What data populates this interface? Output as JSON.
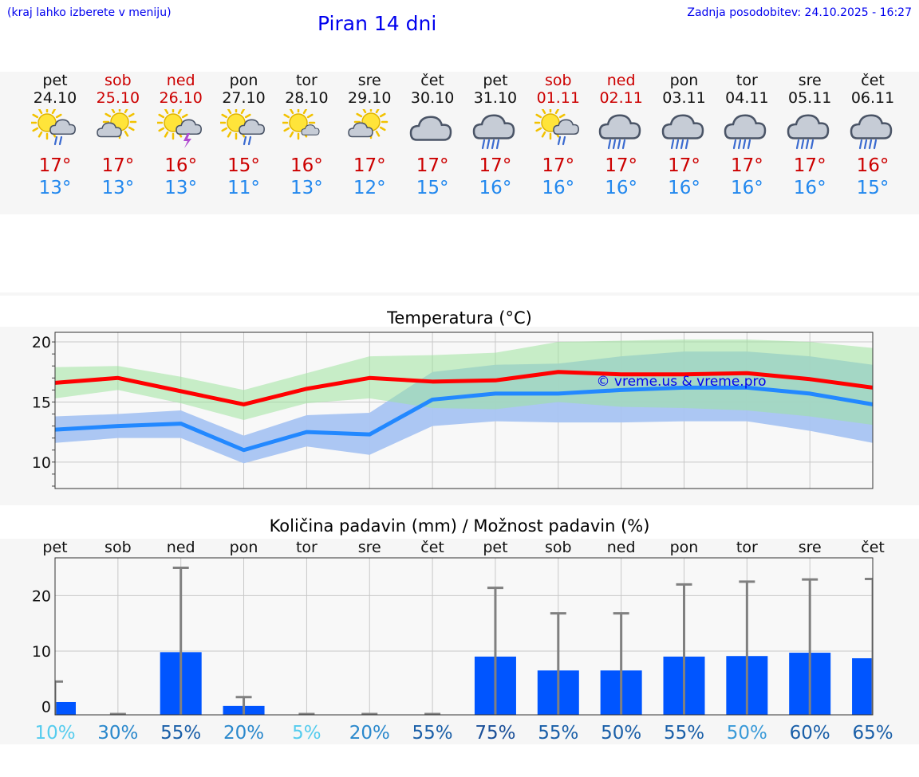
{
  "header": {
    "hint": "(kraj lahko izberete v meniju)",
    "title": "Piran 14 dni",
    "updated": "Zadnja posodobitev: 24.10.2025 - 16:27"
  },
  "colors": {
    "link": "#0000ee",
    "max_temp": "#cc0000",
    "min_temp": "#2288ee",
    "weekend": "#cc0000",
    "max_line": "#ff0000",
    "min_line": "#2288ff",
    "max_band": "#9ee49e",
    "min_band": "#a8c4f2",
    "overlap_band": "#6bbfa4",
    "bar": "#0055ff",
    "whisker": "#808080"
  },
  "days": [
    {
      "name": "pet",
      "date": "24.10",
      "weekend": false,
      "icon": "sun-cloud-rain-icon",
      "tmax": "17°",
      "tmin": "13°"
    },
    {
      "name": "sob",
      "date": "25.10",
      "weekend": true,
      "icon": "sun-cloud-icon",
      "tmax": "17°",
      "tmin": "13°"
    },
    {
      "name": "ned",
      "date": "26.10",
      "weekend": true,
      "icon": "sun-thunder-icon",
      "tmax": "16°",
      "tmin": "13°"
    },
    {
      "name": "pon",
      "date": "27.10",
      "weekend": false,
      "icon": "sun-cloud-rain-icon",
      "tmax": "15°",
      "tmin": "11°"
    },
    {
      "name": "tor",
      "date": "28.10",
      "weekend": false,
      "icon": "sun-small-cloud-icon",
      "tmax": "16°",
      "tmin": "13°"
    },
    {
      "name": "sre",
      "date": "29.10",
      "weekend": false,
      "icon": "sun-cloud-icon",
      "tmax": "17°",
      "tmin": "12°"
    },
    {
      "name": "čet",
      "date": "30.10",
      "weekend": false,
      "icon": "cloud-icon",
      "tmax": "17°",
      "tmin": "15°"
    },
    {
      "name": "pet",
      "date": "31.10",
      "weekend": false,
      "icon": "cloud-heavy-rain-icon",
      "tmax": "17°",
      "tmin": "16°"
    },
    {
      "name": "sob",
      "date": "01.11",
      "weekend": true,
      "icon": "sun-cloud-rain-icon",
      "tmax": "17°",
      "tmin": "16°"
    },
    {
      "name": "ned",
      "date": "02.11",
      "weekend": true,
      "icon": "cloud-heavy-rain-icon",
      "tmax": "17°",
      "tmin": "16°"
    },
    {
      "name": "pon",
      "date": "03.11",
      "weekend": false,
      "icon": "cloud-heavy-rain-icon",
      "tmax": "17°",
      "tmin": "16°"
    },
    {
      "name": "tor",
      "date": "04.11",
      "weekend": false,
      "icon": "cloud-heavy-rain-icon",
      "tmax": "17°",
      "tmin": "16°"
    },
    {
      "name": "sre",
      "date": "05.11",
      "weekend": false,
      "icon": "cloud-heavy-rain-icon",
      "tmax": "17°",
      "tmin": "16°"
    },
    {
      "name": "čet",
      "date": "06.11",
      "weekend": false,
      "icon": "cloud-heavy-rain-icon",
      "tmax": "16°",
      "tmin": "15°"
    }
  ],
  "chart_data": [
    {
      "type": "line",
      "title": "Temperatura (°C)",
      "watermark": "© vreme.us & vreme.pro",
      "ylim": [
        7.8,
        20.8
      ],
      "yticks": [
        10,
        15,
        20
      ],
      "grid": true,
      "categories": [
        "24.10",
        "25.10",
        "26.10",
        "27.10",
        "28.10",
        "29.10",
        "30.10",
        "31.10",
        "01.11",
        "02.11",
        "03.11",
        "04.11",
        "05.11",
        "06.11"
      ],
      "x": [
        0,
        1,
        2,
        3,
        4,
        5,
        6,
        7,
        8,
        9,
        10,
        11,
        12,
        13
      ],
      "series": [
        {
          "kind": "max",
          "values": [
            16.6,
            17.0,
            15.9,
            14.8,
            16.1,
            17.0,
            16.7,
            16.8,
            17.5,
            17.3,
            17.3,
            17.4,
            16.9,
            16.2
          ],
          "band_upper": [
            17.9,
            18.0,
            17.1,
            16.0,
            17.4,
            18.8,
            18.9,
            19.1,
            20.0,
            20.1,
            20.2,
            20.2,
            20.0,
            19.5
          ],
          "band_lower": [
            15.3,
            16.0,
            14.9,
            13.5,
            14.9,
            15.3,
            14.5,
            14.4,
            15.0,
            14.6,
            14.5,
            14.3,
            13.8,
            13.1
          ]
        },
        {
          "kind": "min",
          "values": [
            12.7,
            13.0,
            13.2,
            11.0,
            12.5,
            12.3,
            15.2,
            15.7,
            15.7,
            16.0,
            16.2,
            16.2,
            15.7,
            14.8
          ],
          "band_upper": [
            13.8,
            14.0,
            14.3,
            12.2,
            13.9,
            14.1,
            17.5,
            18.1,
            18.2,
            18.8,
            19.2,
            19.2,
            18.8,
            18.1
          ],
          "band_lower": [
            11.6,
            12.0,
            12.0,
            9.9,
            11.3,
            10.6,
            13.0,
            13.4,
            13.3,
            13.3,
            13.4,
            13.4,
            12.6,
            11.6
          ]
        }
      ]
    },
    {
      "type": "bar",
      "title": "Količina padavin (mm) / Možnost padavin (%)",
      "ylim": [
        -1.5,
        26.8
      ],
      "yticks": [
        0,
        10,
        20
      ],
      "grid": true,
      "categories": [
        "pet",
        "sob",
        "ned",
        "pon",
        "tor",
        "sre",
        "čet",
        "pet",
        "sob",
        "ned",
        "pon",
        "tor",
        "sre",
        "čet"
      ],
      "values": [
        0.8,
        0,
        9.8,
        0.1,
        0,
        0,
        0,
        9.0,
        6.5,
        6.5,
        9.0,
        9.1,
        9.7,
        8.7
      ],
      "whisker_top": [
        4.5,
        0,
        25.0,
        1.7,
        0,
        0,
        0,
        21.4,
        16.8,
        16.8,
        22.0,
        22.5,
        22.9,
        23.0
      ],
      "chance": [
        "10%",
        "30%",
        "55%",
        "20%",
        "5%",
        "20%",
        "55%",
        "75%",
        "55%",
        "50%",
        "55%",
        "50%",
        "60%",
        "65%"
      ],
      "chance_colors": [
        "#55ccee",
        "#2a88cc",
        "#1a5fa8",
        "#2a88cc",
        "#55ccee",
        "#2a88cc",
        "#1a5fa8",
        "#1a4f98",
        "#1a5fa8",
        "#1a5fa8",
        "#1a5fa8",
        "#3a9ad8",
        "#1a5fa8",
        "#1a5fa8"
      ]
    }
  ]
}
